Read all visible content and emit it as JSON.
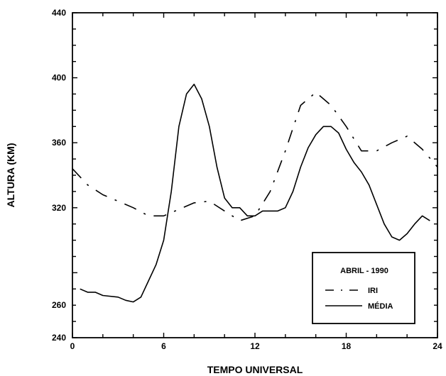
{
  "chart_data": {
    "type": "line",
    "title": "",
    "xlabel": "TEMPO UNIVERSAL",
    "ylabel": "ALTURA (KM)",
    "xlim": [
      0,
      24
    ],
    "ylim": [
      240,
      440
    ],
    "xticks": [
      "0",
      "6",
      "12",
      "18",
      "24"
    ],
    "yticks": [
      "240",
      "260",
      "320",
      "360",
      "400",
      "440"
    ],
    "legend": {
      "title": "ABRIL - 1990",
      "placement": "lower-right"
    },
    "grid": false,
    "series": [
      {
        "name": "IRI",
        "style": "dash-dot",
        "x": [
          0,
          1,
          2,
          3,
          4,
          5,
          6,
          7,
          8,
          9,
          10,
          11,
          12,
          13,
          14,
          15,
          16,
          17,
          18,
          19,
          20,
          21,
          22,
          23,
          24
        ],
        "y": [
          344,
          334,
          328,
          324,
          320,
          315,
          315,
          319,
          323,
          324,
          318,
          312,
          315,
          330,
          355,
          383,
          391,
          383,
          370,
          355,
          355,
          360,
          364,
          356,
          345
        ]
      },
      {
        "name": "MÉDIA",
        "style": "solid",
        "x": [
          0.5,
          1,
          1.5,
          2,
          3,
          3.5,
          4,
          4.5,
          5,
          5.5,
          6,
          6.5,
          7,
          7.5,
          8,
          8.5,
          9,
          9.5,
          10,
          10.5,
          11,
          11.5,
          12,
          12.5,
          13,
          13.5,
          14,
          14.5,
          15,
          15.5,
          16,
          16.5,
          17,
          17.5,
          18,
          18.5,
          19,
          19.5,
          20,
          20.5,
          21,
          21.5,
          22,
          22.5,
          23,
          23.5
        ],
        "y": [
          270,
          268,
          268,
          266,
          265,
          263,
          262,
          265,
          275,
          285,
          300,
          330,
          370,
          390,
          396,
          387,
          370,
          345,
          326,
          320,
          320,
          315,
          315,
          318,
          318,
          318,
          320,
          330,
          345,
          357,
          365,
          370,
          370,
          366,
          356,
          348,
          342,
          334,
          322,
          310,
          302,
          300,
          304,
          310,
          315,
          312
        ]
      }
    ]
  }
}
